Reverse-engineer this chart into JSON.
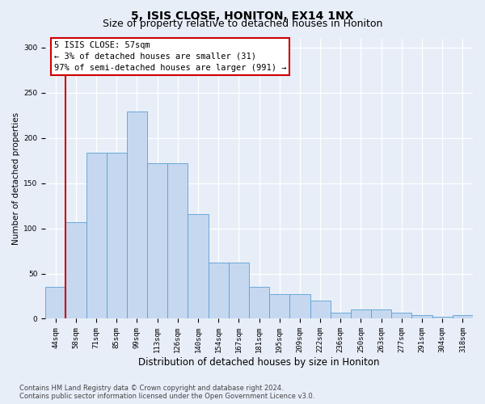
{
  "title": "5, ISIS CLOSE, HONITON, EX14 1NX",
  "subtitle": "Size of property relative to detached houses in Honiton",
  "xlabel": "Distribution of detached houses by size in Honiton",
  "ylabel": "Number of detached properties",
  "categories": [
    "44sqm",
    "58sqm",
    "71sqm",
    "85sqm",
    "99sqm",
    "113sqm",
    "126sqm",
    "140sqm",
    "154sqm",
    "167sqm",
    "181sqm",
    "195sqm",
    "209sqm",
    "222sqm",
    "236sqm",
    "250sqm",
    "263sqm",
    "277sqm",
    "291sqm",
    "304sqm",
    "318sqm"
  ],
  "values": [
    35,
    107,
    184,
    184,
    229,
    172,
    172,
    116,
    62,
    62,
    35,
    27,
    27,
    20,
    7,
    10,
    10,
    7,
    4,
    2,
    4
  ],
  "bar_color": "#c5d8f0",
  "bar_edge_color": "#5a9fd4",
  "background_color": "#e8eef8",
  "grid_color": "#ffffff",
  "annotation_text": "5 ISIS CLOSE: 57sqm\n← 3% of detached houses are smaller (31)\n97% of semi-detached houses are larger (991) →",
  "annotation_box_color": "#ffffff",
  "annotation_box_edge_color": "#cc0000",
  "vline_color": "#cc0000",
  "vline_x": 0.5,
  "ylim": [
    0,
    310
  ],
  "yticks": [
    0,
    50,
    100,
    150,
    200,
    250,
    300
  ],
  "footnote": "Contains HM Land Registry data © Crown copyright and database right 2024.\nContains public sector information licensed under the Open Government Licence v3.0.",
  "title_fontsize": 10,
  "subtitle_fontsize": 9,
  "xlabel_fontsize": 8.5,
  "ylabel_fontsize": 7.5,
  "tick_fontsize": 6.5,
  "annotation_fontsize": 7.5,
  "footnote_fontsize": 6.0
}
